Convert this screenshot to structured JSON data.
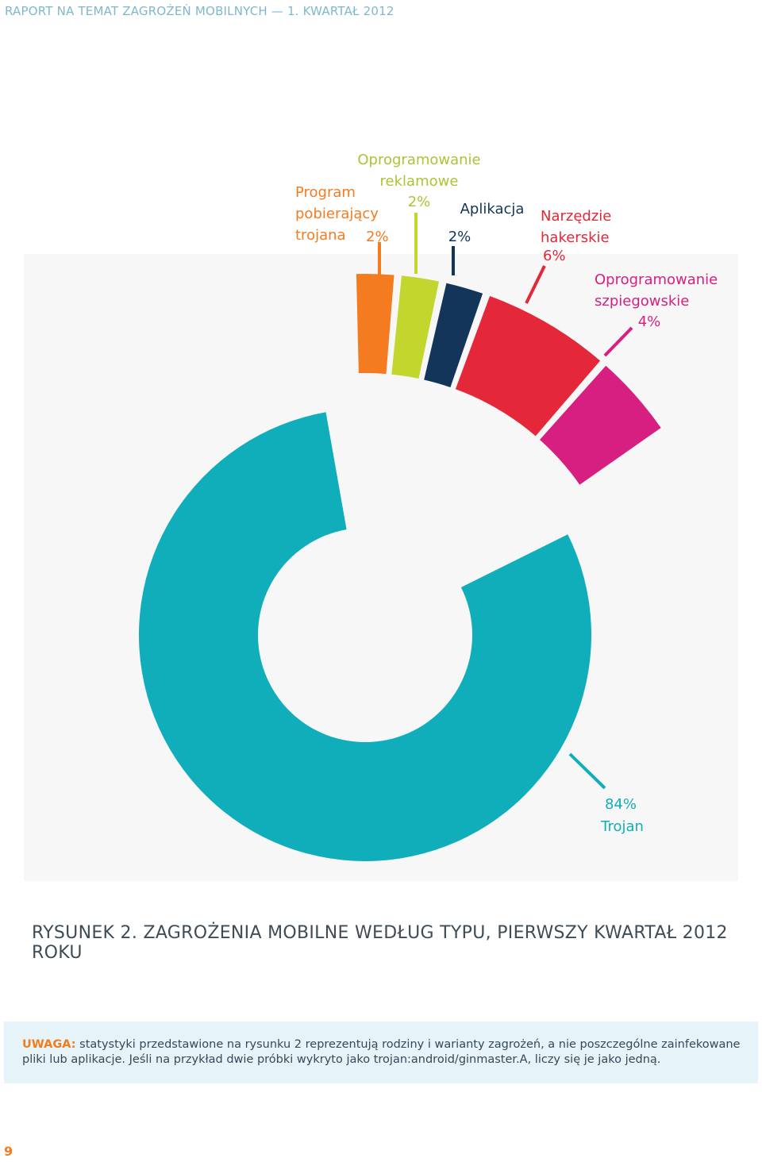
{
  "header": {
    "running_title": "RAPORT NA TEMAT ZAGROŻEŃ MOBILNYCH — 1. KWARTAŁ 2012"
  },
  "chart_data": {
    "type": "pie",
    "categories": [
      "Program pobierający trojana",
      "Oprogramowanie reklamowe",
      "Aplikacja",
      "Narzędzie hakerskie",
      "Oprogramowanie szpiegowskie",
      "Trojan"
    ],
    "values": [
      2,
      2,
      2,
      6,
      4,
      84
    ],
    "value_labels": [
      "2%",
      "2%",
      "2%",
      "6%",
      "4%",
      "84%"
    ],
    "label_lines": [
      [
        "Program",
        "pobierający",
        "trojana"
      ],
      [
        "Oprogramowanie",
        "reklamowe"
      ],
      [
        "Aplikacja"
      ],
      [
        "Narzędzie",
        "hakerskie"
      ],
      [
        "Oprogramowanie",
        "szpiegowskie"
      ],
      [
        "Trojan"
      ]
    ],
    "colors": [
      "#f47b20",
      "#c3d62d",
      "#14355a",
      "#e5273a",
      "#d61f80",
      "#10adbb"
    ],
    "label_colors": [
      "#f47b20",
      "#aac536",
      "#14355a",
      "#e5273a",
      "#d61f80",
      "#10adbb"
    ],
    "style": "exploded donut"
  },
  "caption": "RYSUNEK 2. ZAGROŻENIA MOBILNE WEDŁUG TYPU, PIERWSZY KWARTAŁ 2012 ROKU",
  "note": {
    "label": "UWAGA:",
    "text": "statystyki przedstawione na rysunku 2 reprezentują rodziny i warianty zagrożeń, a nie poszczególne zainfekowane pliki lub aplikacje. Jeśli na przykład dwie próbki wykryto jako trojan:android/ginmaster.A, liczy się je jako jedną."
  },
  "page_number": "9"
}
